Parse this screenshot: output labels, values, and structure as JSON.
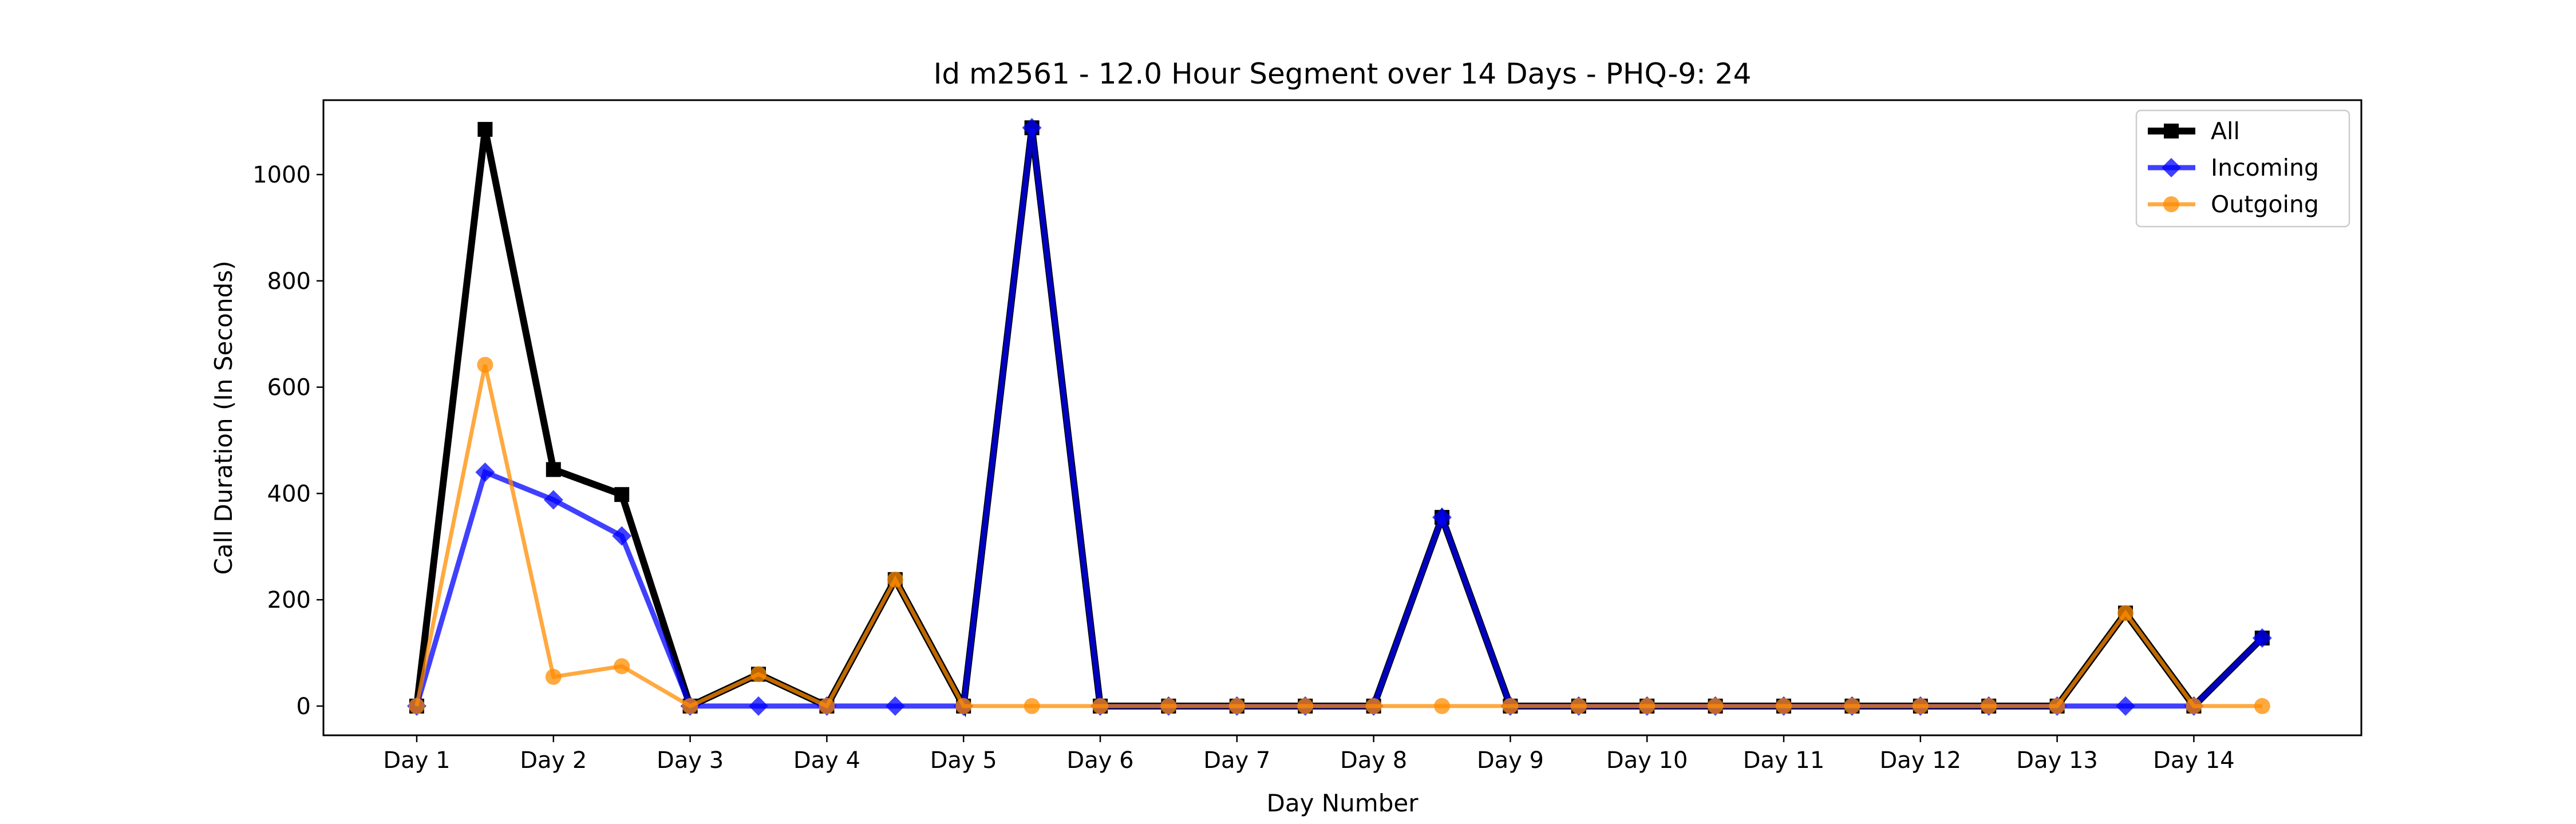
{
  "chart_data": {
    "type": "line",
    "title": "Id m2561 - 12.0 Hour Segment over 14 Days - PHQ-9: 24",
    "xlabel": "Day Number",
    "ylabel": "Call Duration (In Seconds)",
    "x_tick_labels": [
      "Day 1",
      "Day 2",
      "Day 3",
      "Day 4",
      "Day 5",
      "Day 6",
      "Day 7",
      "Day 8",
      "Day 9",
      "Day 10",
      "Day 11",
      "Day 12",
      "Day 13",
      "Day 14"
    ],
    "y_ticks": [
      0,
      200,
      400,
      600,
      800,
      1000
    ],
    "ylim": [
      -55,
      1140
    ],
    "x_segments_per_day": 2,
    "grid": false,
    "legend_position": "top-right",
    "series": [
      {
        "name": "All",
        "color": "#000000",
        "marker": "square",
        "values": [
          0,
          1085,
          445,
          398,
          0,
          60,
          0,
          238,
          0,
          1088,
          0,
          0,
          0,
          0,
          0,
          355,
          0,
          0,
          0,
          0,
          0,
          0,
          0,
          0,
          0,
          175,
          0,
          128
        ]
      },
      {
        "name": "Incoming",
        "color": "#0000ff",
        "marker": "diamond",
        "values": [
          0,
          440,
          388,
          320,
          0,
          0,
          0,
          0,
          0,
          1088,
          0,
          0,
          0,
          0,
          0,
          355,
          0,
          0,
          0,
          0,
          0,
          0,
          0,
          0,
          0,
          0,
          0,
          128
        ]
      },
      {
        "name": "Outgoing",
        "color": "#ff8c00",
        "marker": "circle",
        "values": [
          0,
          642,
          55,
          75,
          0,
          60,
          0,
          238,
          0,
          0,
          0,
          0,
          0,
          0,
          0,
          0,
          0,
          0,
          0,
          0,
          0,
          0,
          0,
          0,
          0,
          175,
          0,
          0
        ]
      }
    ]
  }
}
